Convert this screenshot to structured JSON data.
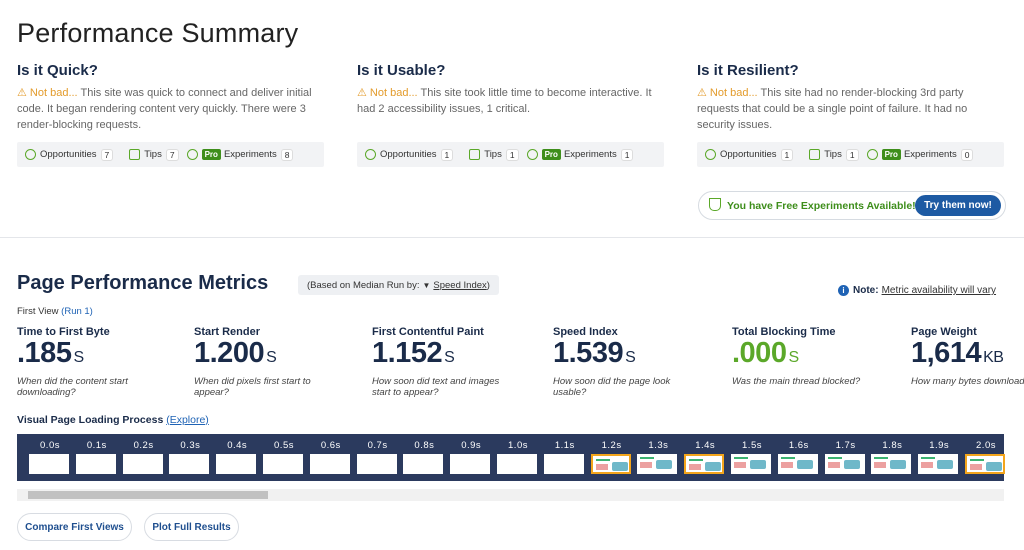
{
  "header": {
    "title": "Performance Summary"
  },
  "summary": [
    {
      "title": "Is it Quick?",
      "status": "Not bad...",
      "text": "This site was quick to connect and deliver initial code. It began rendering content very quickly. There were 3 render-blocking requests.",
      "chips": {
        "opportunities": {
          "label": "Opportunities",
          "count": "7"
        },
        "tips": {
          "label": "Tips",
          "count": "7"
        },
        "badge": "Pro",
        "experiments": {
          "label": "Experiments",
          "count": "8"
        }
      }
    },
    {
      "title": "Is it Usable?",
      "status": "Not bad...",
      "text": "This site took little time to become interactive. It had 2 accessibility issues, 1 critical.",
      "chips": {
        "opportunities": {
          "label": "Opportunities",
          "count": "1"
        },
        "tips": {
          "label": "Tips",
          "count": "1"
        },
        "badge": "Pro",
        "experiments": {
          "label": "Experiments",
          "count": "1"
        }
      }
    },
    {
      "title": "Is it Resilient?",
      "status": "Not bad...",
      "text": "This site had no render-blocking 3rd party requests that could be a single point of failure. It had no security issues.",
      "chips": {
        "opportunities": {
          "label": "Opportunities",
          "count": "1"
        },
        "tips": {
          "label": "Tips",
          "count": "1"
        },
        "badge": "Pro",
        "experiments": {
          "label": "Experiments",
          "count": "0"
        }
      }
    }
  ],
  "banner": {
    "text": "You have Free Experiments Available!",
    "button": "Try them now!"
  },
  "metrics": {
    "title": "Page Performance Metrics",
    "basis": {
      "prefix": "(Based on Median Run by:",
      "link": "Speed Index",
      "suffix": ")"
    },
    "note": {
      "label": "Note:",
      "text": "Metric availability will vary"
    },
    "view": {
      "label": "First View",
      "run": "(Run 1)"
    },
    "items": [
      {
        "label": "Time to First Byte",
        "value": ".185",
        "unit": "S",
        "desc": "When did the content start downloading?"
      },
      {
        "label": "Start Render",
        "value": "1.200",
        "unit": "S",
        "desc": "When did pixels first start to appear?"
      },
      {
        "label": "First Contentful Paint",
        "value": "1.152",
        "unit": "S",
        "desc": "How soon did text and images start to appear?"
      },
      {
        "label": "Speed Index",
        "value": "1.539",
        "unit": "S",
        "desc": "How soon did the page look usable?"
      },
      {
        "label": "Total Blocking Time",
        "value": ".000",
        "unit": "S",
        "desc": "Was the main thread blocked?",
        "color": "#5ba829"
      },
      {
        "label": "Page Weight",
        "value": "1,614",
        "unit": "KB",
        "desc": "How many bytes downloaded?"
      }
    ]
  },
  "filmstrip": {
    "title": "Visual Page Loading Process",
    "link": "(Explore)",
    "frames": [
      {
        "time": "0.0s",
        "rendered": false,
        "changed": false
      },
      {
        "time": "0.1s",
        "rendered": false,
        "changed": false
      },
      {
        "time": "0.2s",
        "rendered": false,
        "changed": false
      },
      {
        "time": "0.3s",
        "rendered": false,
        "changed": false
      },
      {
        "time": "0.4s",
        "rendered": false,
        "changed": false
      },
      {
        "time": "0.5s",
        "rendered": false,
        "changed": false
      },
      {
        "time": "0.6s",
        "rendered": false,
        "changed": false
      },
      {
        "time": "0.7s",
        "rendered": false,
        "changed": false
      },
      {
        "time": "0.8s",
        "rendered": false,
        "changed": false
      },
      {
        "time": "0.9s",
        "rendered": false,
        "changed": false
      },
      {
        "time": "1.0s",
        "rendered": false,
        "changed": false
      },
      {
        "time": "1.1s",
        "rendered": false,
        "changed": false
      },
      {
        "time": "1.2s",
        "rendered": true,
        "changed": true
      },
      {
        "time": "1.3s",
        "rendered": true,
        "changed": false
      },
      {
        "time": "1.4s",
        "rendered": true,
        "changed": true
      },
      {
        "time": "1.5s",
        "rendered": true,
        "changed": false
      },
      {
        "time": "1.6s",
        "rendered": true,
        "changed": false
      },
      {
        "time": "1.7s",
        "rendered": true,
        "changed": false
      },
      {
        "time": "1.8s",
        "rendered": true,
        "changed": false
      },
      {
        "time": "1.9s",
        "rendered": true,
        "changed": false
      },
      {
        "time": "2.0s",
        "rendered": true,
        "changed": true
      }
    ]
  },
  "buttons": [
    "Compare First Views",
    "Plot Full Results"
  ]
}
